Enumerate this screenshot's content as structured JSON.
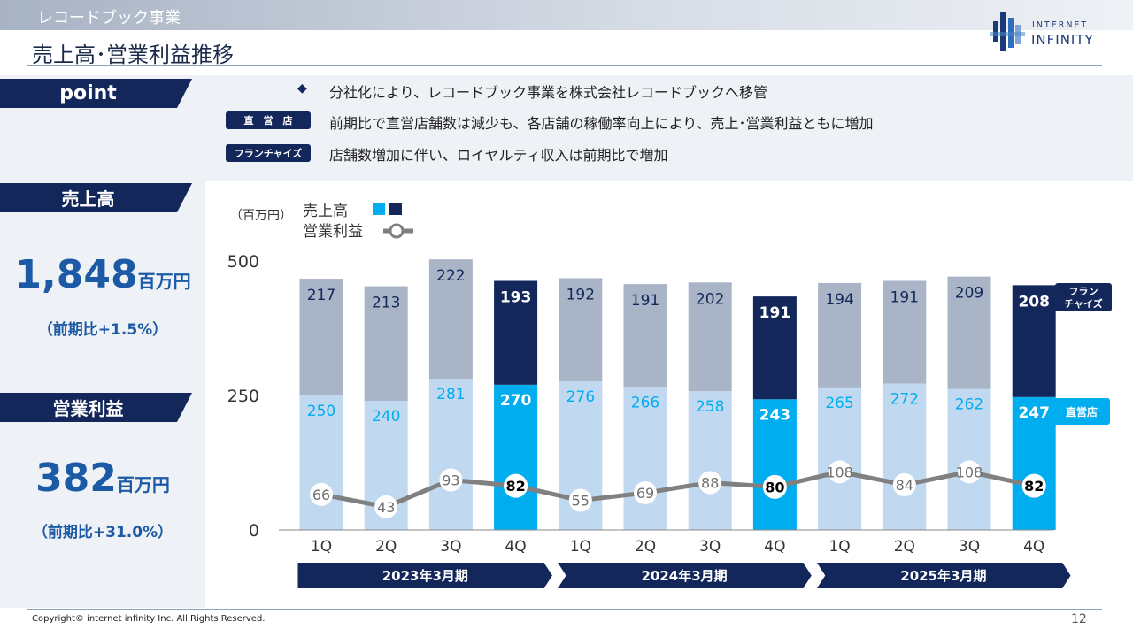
{
  "header": {
    "section": "レコードブック事業",
    "title": "売上高･営業利益推移",
    "logo_line1": "INTERNET",
    "logo_line2": "INFINITY"
  },
  "point": {
    "tab_label": "point",
    "bullets": [
      {
        "tag": "◆",
        "text": "分社化により、レコードブック事業を株式会社レコードブックへ移管"
      },
      {
        "tag": "直　営　店",
        "text": "前期比で直営店舗数は減少も、各店舗の稼働率向上により、売上･営業利益ともに増加"
      },
      {
        "tag": "フランチャイズ",
        "text": "店舗数増加に伴い、ロイヤルティ収入は前期比で増加"
      }
    ]
  },
  "summary": {
    "sales_label": "売上高",
    "sales_value": "1,848",
    "sales_unit": "百万円",
    "sales_yoy": "（前期比+1.5%）",
    "op_label": "営業利益",
    "op_value": "382",
    "op_unit": "百万円",
    "op_yoy": "（前期比+31.0%）"
  },
  "colors": {
    "navy": "#13275a",
    "direct_highlight": "#00adef",
    "direct_normal": "#c0d9f0",
    "fc_normal": "#a9b4c6",
    "line": "#808080"
  },
  "chart_data": {
    "type": "bar",
    "unit_label": "（百万円）",
    "legend": {
      "sales": "売上高",
      "op": "営業利益"
    },
    "categories": [
      "1Q",
      "2Q",
      "3Q",
      "4Q",
      "1Q",
      "2Q",
      "3Q",
      "4Q",
      "1Q",
      "2Q",
      "3Q",
      "4Q"
    ],
    "periods": [
      {
        "label": "2023年3月期",
        "quarters": 4
      },
      {
        "label": "2024年3月期",
        "quarters": 4
      },
      {
        "label": "2025年3月期",
        "quarters": 4
      }
    ],
    "ylim": [
      0,
      500
    ],
    "yticks": [
      0,
      250,
      500
    ],
    "series": [
      {
        "name": "直営店",
        "values": [
          250,
          240,
          281,
          270,
          276,
          266,
          258,
          243,
          265,
          272,
          262,
          247
        ]
      },
      {
        "name": "フランチャイズ",
        "values": [
          217,
          213,
          222,
          193,
          192,
          191,
          202,
          191,
          194,
          191,
          209,
          208
        ]
      },
      {
        "name": "営業利益",
        "type": "line",
        "values": [
          66,
          43,
          93,
          82,
          55,
          69,
          88,
          80,
          108,
          84,
          108,
          82
        ]
      }
    ],
    "side_labels": {
      "fc": "フラン\nチャイズ",
      "direct": "直営店"
    }
  },
  "footer": {
    "copyright": "Copyright© internet infinity Inc. All Rights Reserved.",
    "page": "12"
  }
}
